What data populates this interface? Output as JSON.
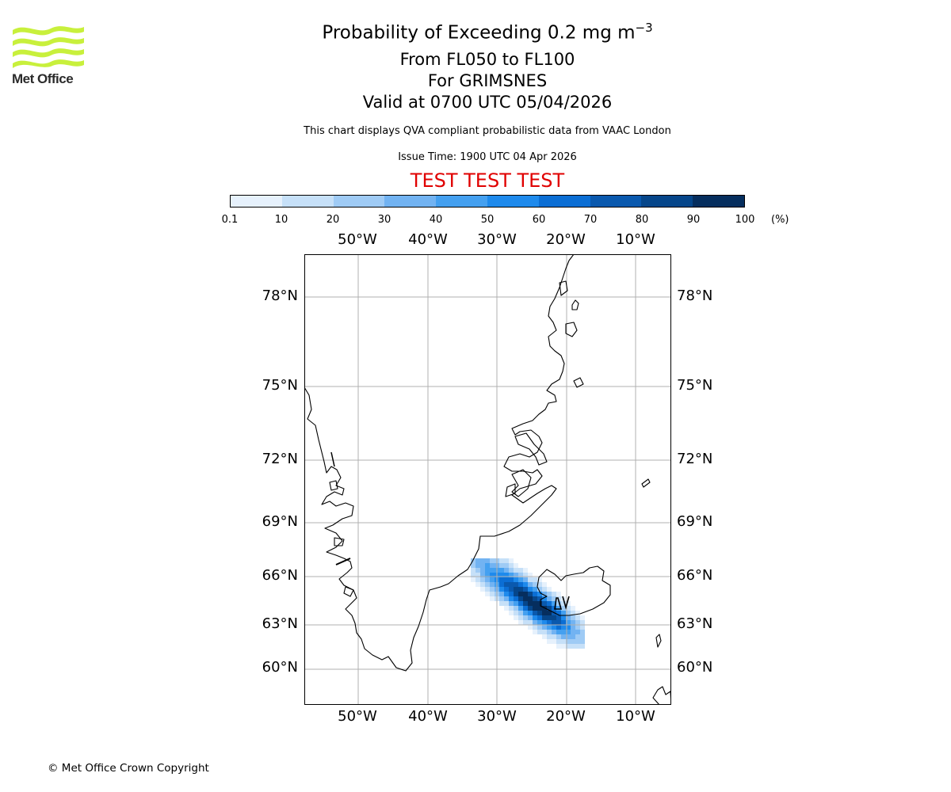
{
  "title": {
    "main": "Probability of Exceeding 0.2 mg m",
    "main_exponent": "−3",
    "levels": "From FL050 to FL100",
    "location": "For GRIMSNES",
    "valid": "Valid at 0700 UTC 05/04/2026"
  },
  "disclaimer": "This chart displays QVA compliant probabilistic data from VAAC London",
  "issue_time": "Issue Time: 1900 UTC 04 Apr 2026",
  "test_banner": "TEST TEST TEST",
  "logo_text": "Met Office",
  "colorbar": {
    "colors": [
      "#e6f1fc",
      "#c6e0f8",
      "#9fcbf5",
      "#72b3f2",
      "#44a0f0",
      "#1e8aec",
      "#0b6ed4",
      "#0a59ae",
      "#06468a",
      "#062e5e"
    ],
    "labels": [
      "0.1",
      "10",
      "20",
      "30",
      "40",
      "50",
      "60",
      "70",
      "80",
      "90",
      "100"
    ],
    "unit": "(%)"
  },
  "map": {
    "lon_labels": [
      "50°W",
      "40°W",
      "30°W",
      "20°W",
      "10°W"
    ],
    "lon_values": [
      -50,
      -40,
      -30,
      -20,
      -10
    ],
    "lat_labels": [
      "78°N",
      "75°N",
      "72°N",
      "69°N",
      "66°N",
      "63°N",
      "60°N"
    ],
    "lat_values": [
      78,
      75,
      72,
      69,
      66,
      63,
      60
    ],
    "volcano": "Grimsnes",
    "volcano_lat": 64.0,
    "volcano_lon": -20.9
  },
  "copyright": "© Met Office Crown Copyright"
}
